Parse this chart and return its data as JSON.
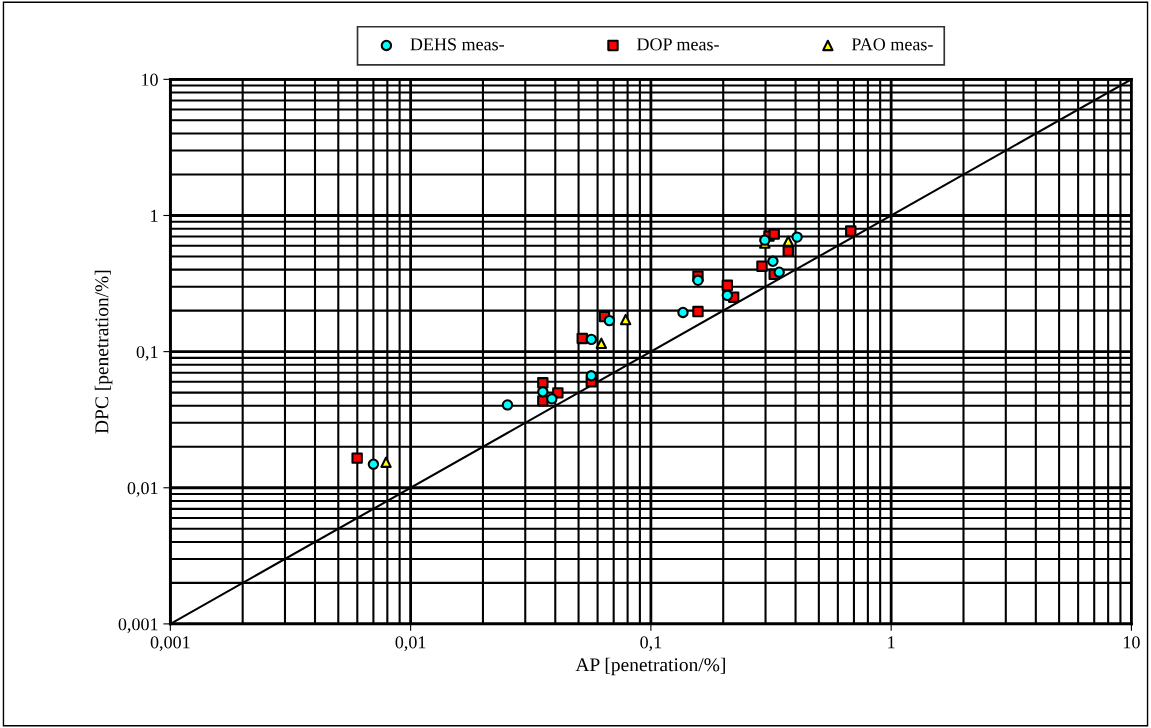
{
  "chart_data": {
    "type": "scatter",
    "xlabel": "AP [penetration/%]",
    "ylabel": "DPC [penetration/%]",
    "log": "xy",
    "xlim": [
      0.001,
      10
    ],
    "ylim": [
      0.001,
      10
    ],
    "xticks": [
      {
        "value": 0.001,
        "label": "0,001"
      },
      {
        "value": 0.01,
        "label": "0,01"
      },
      {
        "value": 0.1,
        "label": "0,1"
      },
      {
        "value": 1,
        "label": "1"
      },
      {
        "value": 10,
        "label": "10"
      }
    ],
    "yticks": [
      {
        "value": 0.001,
        "label": "0,001"
      },
      {
        "value": 0.01,
        "label": "0,01"
      },
      {
        "value": 0.1,
        "label": "0,1"
      },
      {
        "value": 1,
        "label": "1"
      },
      {
        "value": 10,
        "label": "10"
      }
    ],
    "grid": true,
    "legend": "top",
    "series": [
      {
        "name": "DEHS meas-",
        "color": "#00ffff",
        "marker": "circle",
        "x": [
          0.007,
          0.0253,
          0.0355,
          0.0387,
          0.0565,
          0.0565,
          0.0672,
          0.136,
          0.157,
          0.208,
          0.322,
          0.342,
          0.298,
          0.406
        ],
        "values": [
          0.0149,
          0.0406,
          0.0507,
          0.045,
          0.0665,
          0.123,
          0.169,
          0.194,
          0.334,
          0.259,
          0.461,
          0.383,
          0.659,
          0.694
        ]
      },
      {
        "name": "DOP meas-",
        "color": "#ff0000",
        "marker": "square",
        "x": [
          0.00599,
          0.0355,
          0.0355,
          0.041,
          0.0565,
          0.0518,
          0.0641,
          0.157,
          0.157,
          0.208,
          0.221,
          0.29,
          0.326,
          0.31,
          0.326,
          0.373,
          0.679
        ],
        "values": [
          0.0165,
          0.059,
          0.0435,
          0.0498,
          0.0601,
          0.125,
          0.181,
          0.197,
          0.358,
          0.307,
          0.251,
          0.424,
          0.37,
          0.706,
          0.73,
          0.547,
          0.769
        ]
      },
      {
        "name": "PAO meas-",
        "color": "#ffff00",
        "marker": "triangle",
        "x": [
          0.0079,
          0.0622,
          0.0785,
          0.298,
          0.373
        ],
        "values": [
          0.0154,
          0.115,
          0.172,
          0.627,
          0.648
        ]
      },
      {
        "type": "line",
        "color": "#000000",
        "marker": "none",
        "x": [
          0.001,
          10
        ],
        "values": [
          0.001,
          10
        ]
      }
    ]
  }
}
